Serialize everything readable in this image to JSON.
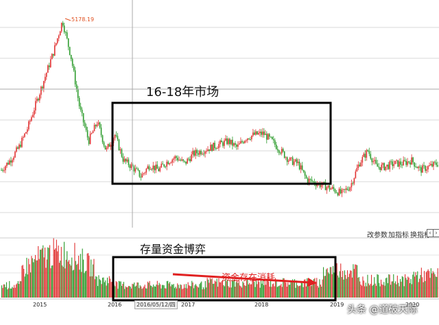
{
  "chart": {
    "peak_label": "5178.19",
    "box1_label": "16-18年市场",
    "box2_label": "存量资金博弈",
    "arrow_label": "资金存在消耗",
    "selected_date": "2016/05/12/四",
    "x_ticks": [
      "2015",
      "2016",
      "2017",
      "2018",
      "2019",
      "2020"
    ]
  },
  "toolbar": {
    "change_params": "改参数",
    "add_indicator": "加指标",
    "switch_indicator": "换指标",
    "prev": "‹",
    "next": "›"
  },
  "watermark": "头条 @道破天际",
  "colors": {
    "up": "#e03030",
    "down": "#2a9a2a",
    "grid": "#d8d8d8",
    "box": "#000000",
    "arrow": "#e02020",
    "annotation_red": "#e02020"
  },
  "chart_data": {
    "type": "candlestick",
    "price_series": [
      2850,
      3000,
      3200,
      3500,
      3900,
      4300,
      4700,
      5178,
      4600,
      3800,
      3300,
      3600,
      3150,
      3400,
      3000,
      2900,
      2750,
      2930,
      2850,
      2980,
      3050,
      2950,
      3100,
      3150,
      3200,
      3250,
      3300,
      3200,
      3350,
      3400,
      3420,
      3300,
      3150,
      3000,
      2950,
      2700,
      2650,
      2600,
      2550,
      2480,
      2600,
      2950,
      3150,
      2900,
      2900,
      2950,
      2950,
      3000,
      2850,
      2900,
      2950
    ]
  }
}
